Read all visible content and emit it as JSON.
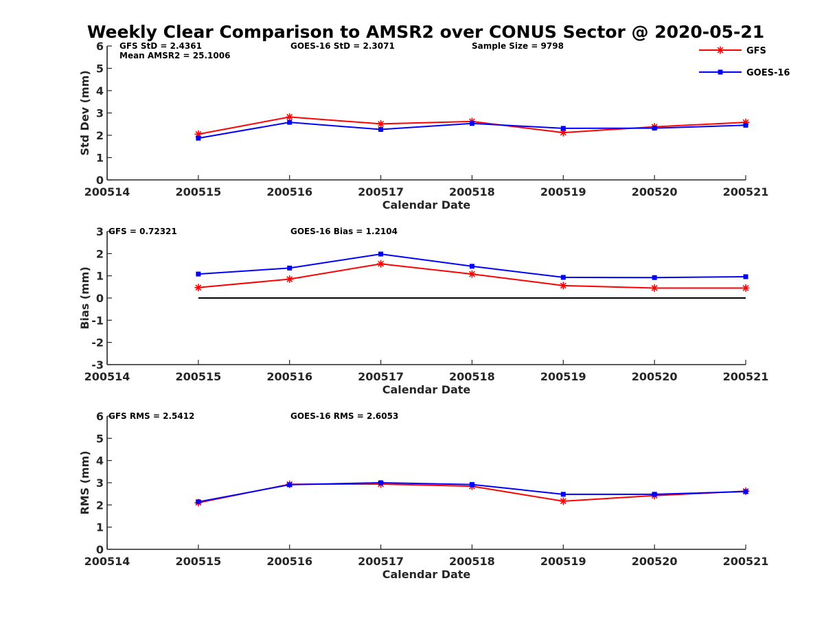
{
  "title": "Weekly Clear Comparison to AMSR2 over CONUS Sector @ 2020-05-21",
  "legend": [
    {
      "name": "GFS",
      "color": "#ff0000",
      "marker": "asterisk"
    },
    {
      "name": "GOES-16",
      "color": "#0000ff",
      "marker": "square"
    }
  ],
  "chart_data": [
    {
      "type": "line",
      "ylabel": "Std Dev (mm)",
      "xlabel": "Calendar Date",
      "xlim": [
        "200514",
        "200521"
      ],
      "categories": [
        "200514",
        "200515",
        "200516",
        "200517",
        "200518",
        "200519",
        "200520",
        "200521"
      ],
      "ylim": [
        0,
        6
      ],
      "yticks": [
        "0",
        "1",
        "2",
        "3",
        "4",
        "5",
        "6"
      ],
      "annotations": [
        "GFS StD = 2.4361",
        "GOES-16 StD = 2.3071",
        "Sample Size = 9798",
        "Mean AMSR2 = 25.1006"
      ],
      "zero_line": false,
      "series": [
        {
          "name": "GFS",
          "color": "#ff0000",
          "x": [
            "200515",
            "200516",
            "200517",
            "200518",
            "200519",
            "200520",
            "200521"
          ],
          "values": [
            2.05,
            2.82,
            2.51,
            2.62,
            2.12,
            2.38,
            2.58
          ]
        },
        {
          "name": "GOES-16",
          "color": "#0000ff",
          "x": [
            "200515",
            "200516",
            "200517",
            "200518",
            "200519",
            "200520",
            "200521"
          ],
          "values": [
            1.87,
            2.58,
            2.26,
            2.53,
            2.31,
            2.32,
            2.45
          ]
        }
      ]
    },
    {
      "type": "line",
      "ylabel": "Bias (mm)",
      "xlabel": "Calendar Date",
      "xlim": [
        "200514",
        "200521"
      ],
      "categories": [
        "200514",
        "200515",
        "200516",
        "200517",
        "200518",
        "200519",
        "200520",
        "200521"
      ],
      "ylim": [
        -3,
        3
      ],
      "yticks": [
        "-3",
        "-2",
        "-1",
        "0",
        "1",
        "2",
        "3"
      ],
      "annotations": [
        "GFS = 0.72321",
        "GOES-16 Bias  = 1.2104"
      ],
      "zero_line": true,
      "series": [
        {
          "name": "GFS",
          "color": "#ff0000",
          "x": [
            "200515",
            "200516",
            "200517",
            "200518",
            "200519",
            "200520",
            "200521"
          ],
          "values": [
            0.47,
            0.85,
            1.54,
            1.08,
            0.56,
            0.45,
            0.45
          ]
        },
        {
          "name": "GOES-16",
          "color": "#0000ff",
          "x": [
            "200515",
            "200516",
            "200517",
            "200518",
            "200519",
            "200520",
            "200521"
          ],
          "values": [
            1.08,
            1.35,
            1.98,
            1.43,
            0.93,
            0.92,
            0.96
          ]
        }
      ]
    },
    {
      "type": "line",
      "ylabel": "RMS (mm)",
      "xlabel": "Calendar Date",
      "xlim": [
        "200514",
        "200521"
      ],
      "categories": [
        "200514",
        "200515",
        "200516",
        "200517",
        "200518",
        "200519",
        "200520",
        "200521"
      ],
      "ylim": [
        0,
        6
      ],
      "yticks": [
        "0",
        "1",
        "2",
        "3",
        "4",
        "5",
        "6"
      ],
      "annotations": [
        "GFS RMS = 2.5412",
        "GOES-16 RMS = 2.6053"
      ],
      "zero_line": false,
      "series": [
        {
          "name": "GFS",
          "color": "#ff0000",
          "x": [
            "200515",
            "200516",
            "200517",
            "200518",
            "200519",
            "200520",
            "200521"
          ],
          "values": [
            2.1,
            2.93,
            2.94,
            2.84,
            2.17,
            2.42,
            2.62
          ]
        },
        {
          "name": "GOES-16",
          "color": "#0000ff",
          "x": [
            "200515",
            "200516",
            "200517",
            "200518",
            "200519",
            "200520",
            "200521"
          ],
          "values": [
            2.14,
            2.91,
            3.0,
            2.92,
            2.48,
            2.48,
            2.6
          ]
        }
      ]
    }
  ]
}
